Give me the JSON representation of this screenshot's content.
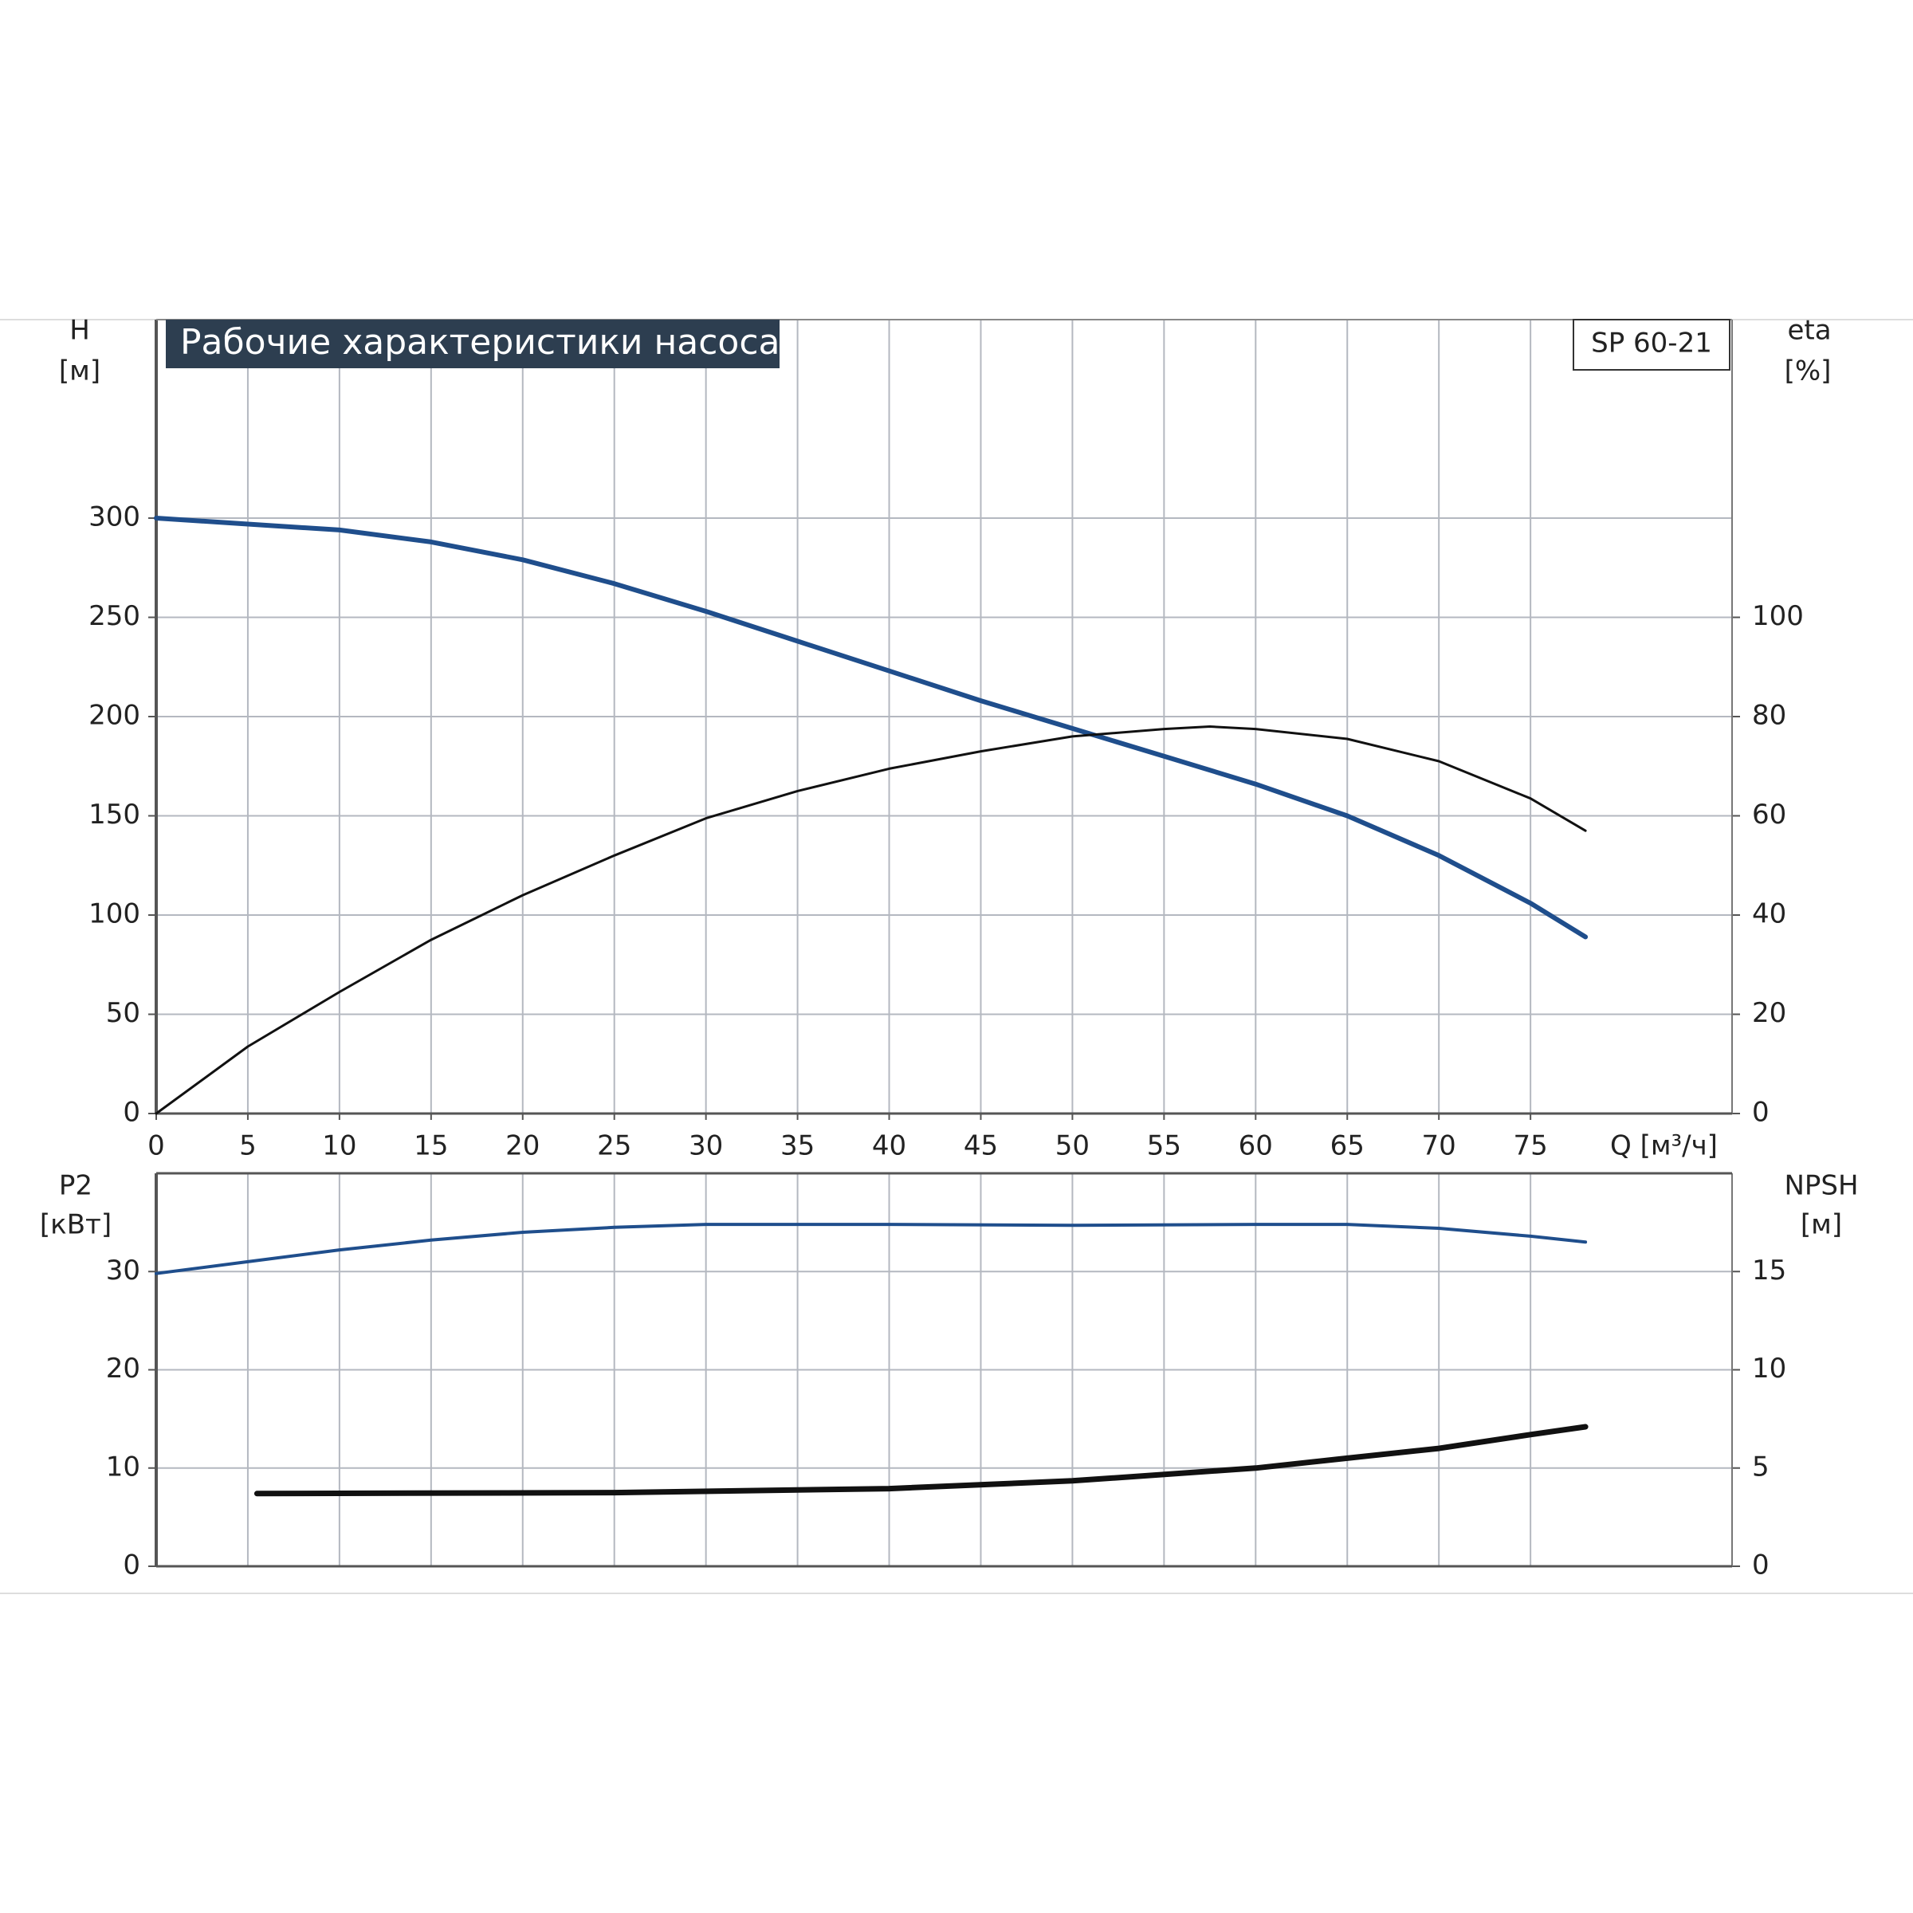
{
  "chart_data": [
    {
      "type": "line",
      "title": "Рабочие характеристики насоса",
      "label": "SP 60-21",
      "ylabel": "H",
      "ylabel_unit": "[м]",
      "y2label": "eta",
      "y2label_unit": "[%]",
      "xlabel": "Q [м³/ч]",
      "xlim": [
        0,
        86
      ],
      "xticks": [
        0,
        5,
        10,
        15,
        20,
        25,
        30,
        35,
        40,
        45,
        50,
        55,
        60,
        65,
        70,
        75
      ],
      "ylim": [
        0,
        400
      ],
      "yticks": [
        0,
        50,
        100,
        150,
        200,
        250,
        300
      ],
      "y2lim": [
        0,
        160
      ],
      "y2ticks": [
        0,
        20,
        40,
        60,
        80,
        100
      ],
      "grid": true,
      "series": [
        {
          "color": "#1f4e8c",
          "width": 6,
          "axis": "y",
          "x": [
            0,
            5,
            10,
            15,
            20,
            25,
            30,
            35,
            40,
            45,
            50,
            55,
            60,
            65,
            70,
            75,
            78
          ],
          "values": [
            300,
            297,
            294,
            288,
            279,
            267,
            253,
            238,
            223,
            208,
            194,
            180,
            166,
            150,
            130,
            106,
            89
          ]
        },
        {
          "color": "#111111",
          "width": 3,
          "axis": "y2",
          "x": [
            0,
            5,
            10,
            15,
            20,
            25,
            30,
            35,
            40,
            45,
            50,
            55,
            57.5,
            60,
            65,
            70,
            75,
            78
          ],
          "values": [
            0,
            13.5,
            24.5,
            35,
            44,
            52,
            59.5,
            65,
            69.5,
            73,
            76,
            77.5,
            78,
            77.5,
            75.5,
            71,
            63.5,
            57
          ]
        }
      ]
    },
    {
      "type": "line",
      "ylabel": "P2",
      "ylabel_unit": "[кВт]",
      "y2label": "NPSH",
      "y2label_unit": "[м]",
      "xlim": [
        0,
        86
      ],
      "ylim": [
        0,
        40
      ],
      "yticks": [
        0,
        10,
        20,
        30
      ],
      "y2lim": [
        0,
        20
      ],
      "y2ticks": [
        0,
        5,
        10,
        15
      ],
      "grid": true,
      "series": [
        {
          "color": "#1f4e8c",
          "width": 4,
          "axis": "y",
          "x": [
            0,
            5,
            10,
            15,
            20,
            25,
            30,
            40,
            50,
            60,
            65,
            70,
            75,
            78
          ],
          "values": [
            29.8,
            31,
            32.2,
            33.2,
            34,
            34.5,
            34.8,
            34.8,
            34.7,
            34.8,
            34.8,
            34.4,
            33.6,
            33
          ]
        },
        {
          "color": "#111111",
          "width": 7,
          "axis": "y2",
          "x": [
            5.5,
            25,
            40,
            50,
            60,
            65,
            70,
            75,
            78
          ],
          "values": [
            3.7,
            3.75,
            3.95,
            4.35,
            5.0,
            5.5,
            6.0,
            6.7,
            7.1
          ]
        }
      ]
    }
  ]
}
